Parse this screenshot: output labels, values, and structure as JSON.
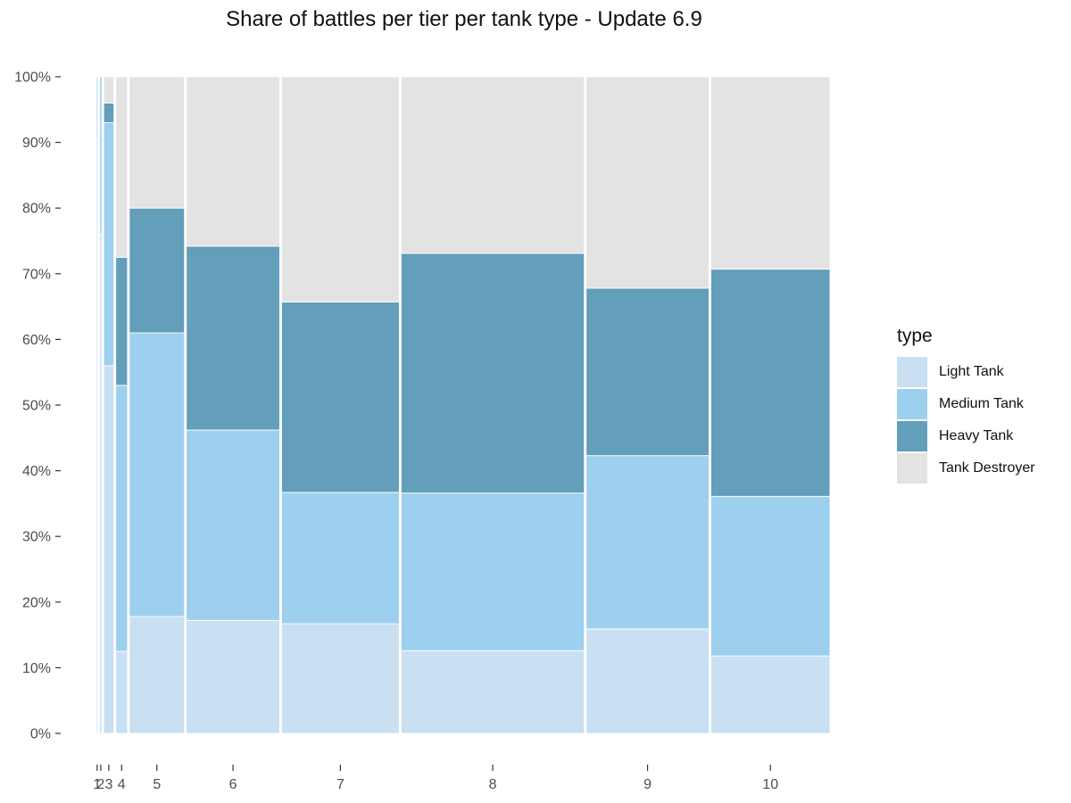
{
  "chart_data": {
    "type": "mosaic",
    "title": "Share of battles per tier per tank type - Update 6.9",
    "xlabel": "",
    "ylabel": "",
    "y_ticks": [
      "0%",
      "10%",
      "20%",
      "30%",
      "40%",
      "50%",
      "60%",
      "70%",
      "80%",
      "90%",
      "100%"
    ],
    "legend_title": "type",
    "legend_position": "right",
    "grid": false,
    "series": [
      {
        "name": "Light Tank",
        "color": "#c9dff2"
      },
      {
        "name": "Medium Tank",
        "color": "#9dcfef"
      },
      {
        "name": "Heavy Tank",
        "color": "#639eba"
      },
      {
        "name": "Tank Destroyer",
        "color": "#e3e3e3"
      }
    ],
    "categories": [
      "1",
      "2",
      "3",
      "4",
      "5",
      "6",
      "7",
      "8",
      "9",
      "10"
    ],
    "category_share_of_battles": [
      0.2,
      0.3,
      1.4,
      1.6,
      7.5,
      12.7,
      16.0,
      24.9,
      16.7,
      16.2
    ],
    "shares_percent": [
      [
        90.5,
        9.5,
        0.0,
        0.0
      ],
      [
        76.0,
        24.0,
        0.0,
        0.0
      ],
      [
        56.0,
        37.0,
        3.0,
        4.0
      ],
      [
        12.5,
        40.5,
        19.5,
        27.5
      ],
      [
        17.8,
        43.2,
        19.0,
        20.0
      ],
      [
        17.2,
        29.0,
        28.0,
        25.8
      ],
      [
        16.7,
        20.0,
        29.0,
        34.3
      ],
      [
        12.6,
        24.0,
        36.5,
        26.9
      ],
      [
        15.9,
        26.4,
        25.5,
        32.2
      ],
      [
        11.8,
        24.3,
        34.6,
        29.3
      ]
    ]
  }
}
